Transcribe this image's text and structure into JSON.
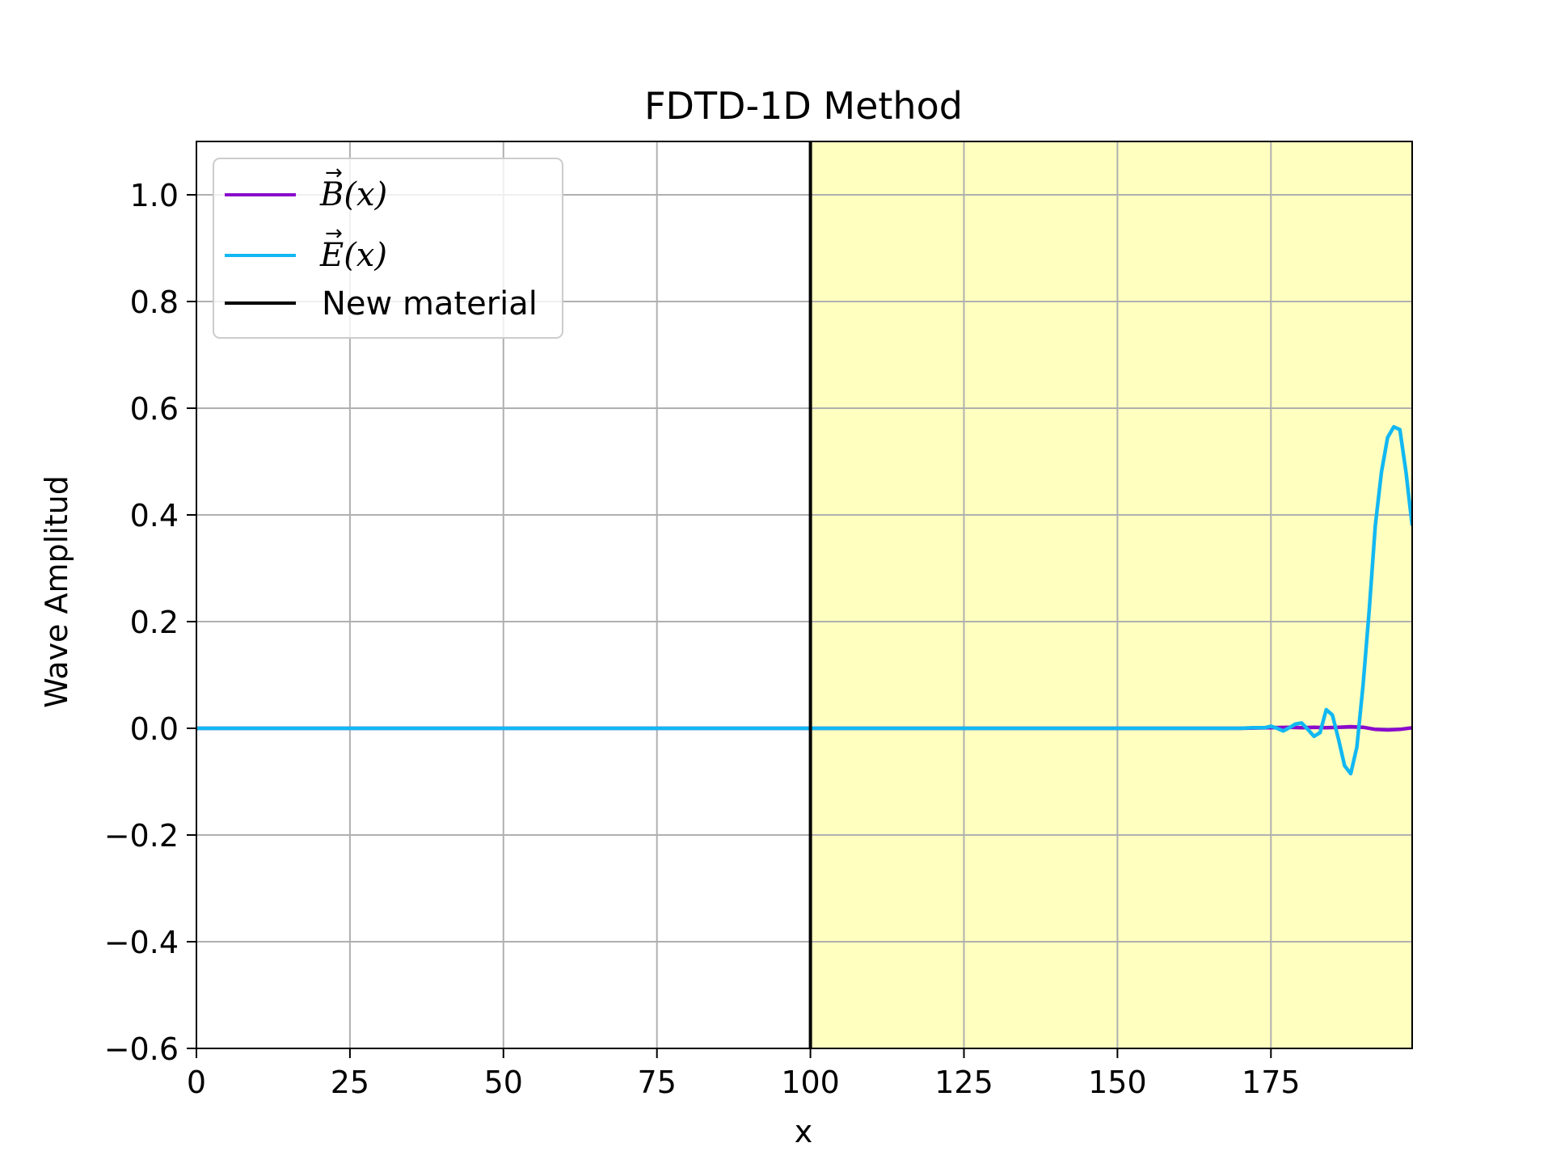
{
  "chart_data": {
    "type": "line",
    "title": "FDTD-1D Method",
    "xlabel": "x",
    "ylabel": "Wave Amplitud",
    "xlim": [
      0,
      198
    ],
    "ylim": [
      -0.6,
      1.1
    ],
    "xticks": [
      0,
      25,
      50,
      75,
      100,
      125,
      150,
      175
    ],
    "xtick_labels": [
      "0",
      "25",
      "50",
      "75",
      "100",
      "125",
      "150",
      "175"
    ],
    "yticks": [
      -0.6,
      -0.4,
      -0.2,
      0.0,
      0.2,
      0.4,
      0.6,
      0.8,
      1.0
    ],
    "ytick_labels": [
      "−0.6",
      "−0.4",
      "−0.2",
      "0.0",
      "0.2",
      "0.4",
      "0.6",
      "0.8",
      "1.0"
    ],
    "grid": true,
    "legend_position": "top-left",
    "material_region": {
      "x_start": 100,
      "x_end": 198,
      "color": "#ffffc0"
    },
    "material_boundary": {
      "x": 100,
      "color": "#000000",
      "name": "New material"
    },
    "series": [
      {
        "name": "B(x)",
        "color": "#8a0bcc",
        "x": [
          0,
          100,
          170,
          175,
          178,
          180,
          182,
          184,
          186,
          188,
          190,
          192,
          194,
          196,
          198
        ],
        "y": [
          0,
          0,
          0,
          0.001,
          0.002,
          0.001,
          0.002,
          0.001,
          0.002,
          0.003,
          0.002,
          -0.002,
          -0.003,
          -0.002,
          0.001
        ]
      },
      {
        "name": "E(x)",
        "color": "#12b8f2",
        "x": [
          0,
          100,
          170,
          172,
          174,
          175,
          176,
          177,
          178,
          179,
          180,
          181,
          182,
          183,
          184,
          185,
          186,
          187,
          188,
          189,
          190,
          191,
          192,
          193,
          194,
          195,
          196,
          197,
          198
        ],
        "y": [
          0,
          0,
          0,
          0.001,
          0.001,
          0.004,
          0.0,
          -0.005,
          0.001,
          0.008,
          0.01,
          -0.002,
          -0.015,
          -0.008,
          0.035,
          0.025,
          -0.02,
          -0.07,
          -0.085,
          -0.035,
          0.08,
          0.22,
          0.38,
          0.48,
          0.545,
          0.565,
          0.56,
          0.48,
          0.38
        ]
      }
    ]
  },
  "legend": {
    "b_symbol": "B",
    "b_arg": "(x)",
    "e_symbol": "E",
    "e_arg": "(x)",
    "material_label": "New material"
  }
}
